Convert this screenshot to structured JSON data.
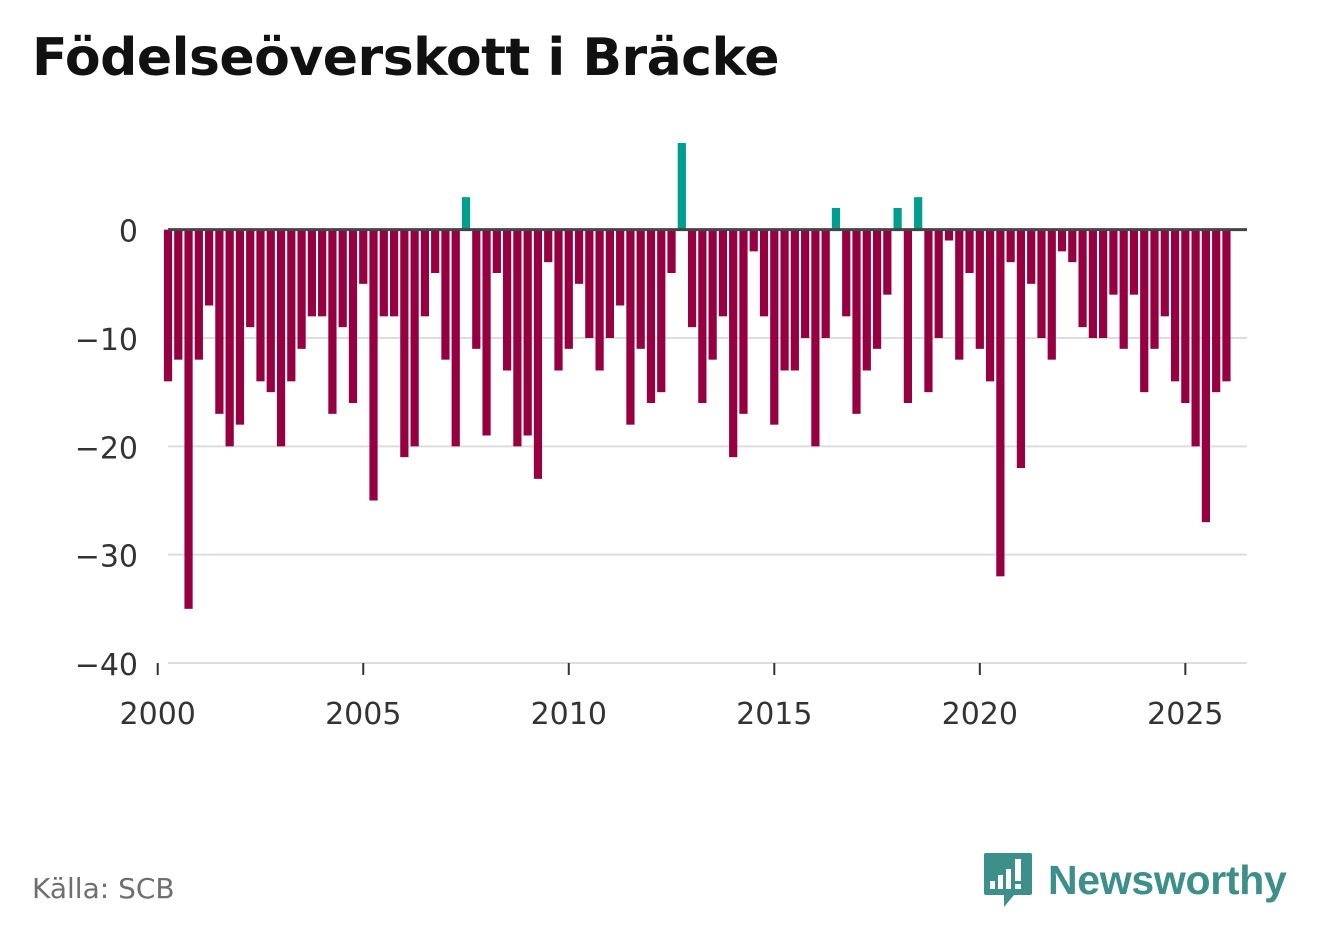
{
  "page_title": "Födelseöverskott i Bräcke",
  "source": "Källa: SCB",
  "logo_text": "Newsworthy",
  "colors": {
    "positive": "#009e8e",
    "negative": "#960040",
    "zero_line": "#444444",
    "grid": "#dddddd",
    "axis_text": "#333333",
    "brand": "#3d8f8a"
  },
  "chart_data": {
    "type": "bar",
    "title": "Födelseöverskott i Bräcke",
    "xlabel": "",
    "ylabel": "",
    "ylim": [
      -40,
      8
    ],
    "xlim": [
      2000.25,
      2026.5
    ],
    "yticks": [
      0,
      -10,
      -20,
      -30,
      -40
    ],
    "ytick_labels": [
      "0",
      "−10",
      "−20",
      "−30",
      "−40"
    ],
    "xticks": [
      2000,
      2005,
      2010,
      2015,
      2020,
      2025
    ],
    "xtick_labels": [
      "2000",
      "2005",
      "2010",
      "2015",
      "2020",
      "2025"
    ],
    "grid": true,
    "frequency": "quarterly",
    "first_period": "2000 Q1",
    "values": [
      -14,
      -12,
      -35,
      -12,
      -7,
      -17,
      -20,
      -18,
      -9,
      -14,
      -15,
      -20,
      -14,
      -11,
      -8,
      -8,
      -17,
      -9,
      -16,
      -5,
      -25,
      -8,
      -8,
      -21,
      -20,
      -8,
      -4,
      -12,
      -20,
      3,
      -11,
      -19,
      -4,
      -13,
      -20,
      -19,
      -23,
      -3,
      -13,
      -11,
      -5,
      -10,
      -13,
      -10,
      -7,
      -18,
      -11,
      -16,
      -15,
      -4,
      8,
      -9,
      -16,
      -12,
      -8,
      -21,
      -17,
      -2,
      -8,
      -18,
      -13,
      -13,
      -10,
      -20,
      -10,
      2,
      -8,
      -17,
      -13,
      -11,
      -6,
      2,
      -16,
      3,
      -15,
      -10,
      -1,
      -12,
      -4,
      -11,
      -14,
      -32,
      -3,
      -22,
      -5,
      -10,
      -12,
      -2,
      -3,
      -9,
      -10,
      -10,
      -6,
      -11,
      -6,
      -15,
      -11,
      -8,
      -14,
      -16,
      -20,
      -27,
      -15,
      -14
    ]
  }
}
